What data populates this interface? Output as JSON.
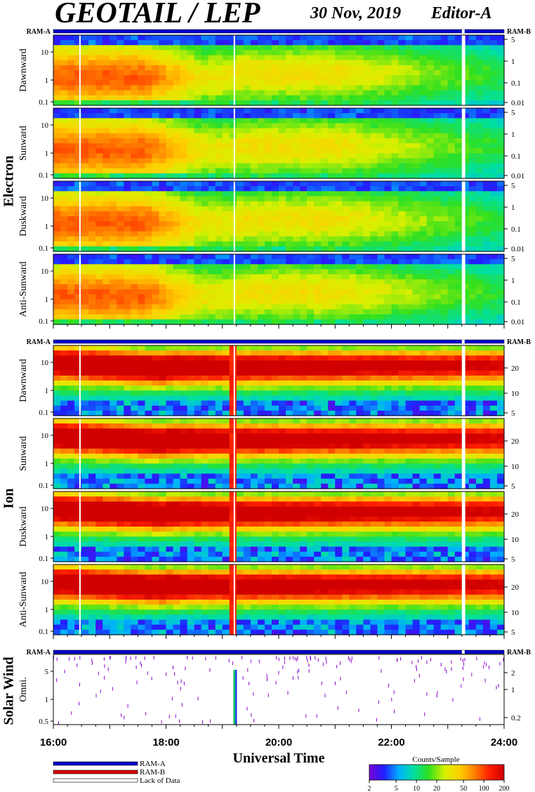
{
  "header": {
    "title": "GEOTAIL / LEP",
    "date": "30 Nov, 2019",
    "editor": "Editor-A"
  },
  "groups": [
    {
      "label": "Electron",
      "ram_left": "RAM-A",
      "ram_right": "RAM-B",
      "panels": [
        {
          "label": "Dawnward",
          "left_ticks": [
            "10",
            "1",
            "0.1"
          ],
          "right_ticks": [
            "5",
            "1",
            "0.1",
            "0.01"
          ]
        },
        {
          "label": "Sunward",
          "left_ticks": [
            "10",
            "1",
            "0.1"
          ],
          "right_ticks": [
            "5",
            "1",
            "0.1",
            "0.01"
          ]
        },
        {
          "label": "Duskward",
          "left_ticks": [
            "10",
            "1",
            "0.1"
          ],
          "right_ticks": [
            "5",
            "1",
            "0.1",
            "0.01"
          ]
        },
        {
          "label": "Anti-Sunward",
          "left_ticks": [
            "10",
            "1",
            "0.1"
          ],
          "right_ticks": [
            "5",
            "1",
            "0.1",
            "0.01"
          ]
        }
      ]
    },
    {
      "label": "Ion",
      "ram_left": "RAM-A",
      "ram_right": "RAM-B",
      "panels": [
        {
          "label": "Dawnward",
          "left_ticks": [
            "10",
            "1",
            "0.1"
          ],
          "right_ticks": [
            "20",
            "10",
            "5"
          ]
        },
        {
          "label": "Sunward",
          "left_ticks": [
            "10",
            "1",
            "0.1"
          ],
          "right_ticks": [
            "20",
            "10",
            "5"
          ]
        },
        {
          "label": "Duskward",
          "left_ticks": [
            "10",
            "1",
            "0.1"
          ],
          "right_ticks": [
            "20",
            "10",
            "5"
          ]
        },
        {
          "label": "Anti-Sunward",
          "left_ticks": [
            "10",
            "1",
            "0.1"
          ],
          "right_ticks": [
            "20",
            "10",
            "5"
          ]
        }
      ]
    },
    {
      "label": "Solar Wind",
      "ram_left": "RAM-A",
      "ram_right": "RAM-B",
      "panels": [
        {
          "label": "Omni.",
          "left_ticks": [
            "5",
            "1",
            "0.5"
          ],
          "right_ticks": [
            "2",
            "1",
            "0.2"
          ]
        }
      ]
    }
  ],
  "chart_data": {
    "type": "heatmap",
    "xlabel": "Universal Time",
    "x_ticks": [
      "16:00",
      "18:00",
      "20:00",
      "22:00",
      "24:00"
    ],
    "xlim_hours": [
      16,
      24
    ],
    "data_gaps_hours": [
      [
        16.46,
        16.47
      ],
      [
        19.2,
        19.22
      ],
      [
        23.25,
        23.31
      ]
    ],
    "features": {
      "electron_hot_region_hours": [
        16.3,
        18.6
      ],
      "electron_sheet_exit_hours": 19.2,
      "ion_hot_band_hours": [
        16.0,
        19.0
      ],
      "ion_spike_hours": 19.22
    },
    "colorbar": {
      "title": "Counts/Sample",
      "ticks": [
        "2",
        "5",
        "10",
        "20",
        "50",
        "100",
        "200"
      ],
      "colors": [
        "#7a00d6",
        "#2020ff",
        "#00b0ff",
        "#00e0a0",
        "#30e020",
        "#d8f000",
        "#ffd000",
        "#ff8000",
        "#ff2000",
        "#d00000"
      ]
    }
  },
  "legend": {
    "items": [
      {
        "label": "RAM-A",
        "color": "#0000cc"
      },
      {
        "label": "RAM-B",
        "color": "#dd0000"
      },
      {
        "label": "Lack of Data",
        "color": "#ffffff"
      }
    ]
  }
}
